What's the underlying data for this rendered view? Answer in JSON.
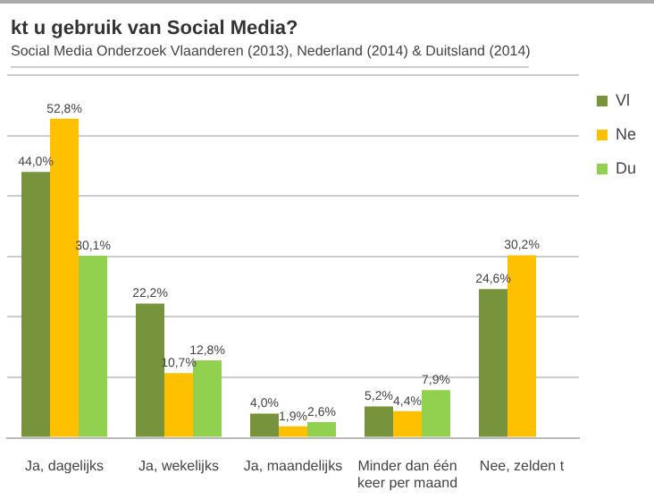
{
  "chart_data": {
    "type": "bar",
    "title": "kt u gebruik van Social Media?",
    "subtitle": "Social Media Onderzoek Vlaanderen (2013), Nederland (2014) & Duitsland (2014)",
    "categories": [
      "Ja, dagelijks",
      "Ja, wekelijks",
      "Ja, maandelijks",
      "Minder dan één keer per maand",
      "Nee, zelden t"
    ],
    "series": [
      {
        "name": "Vl",
        "color": "#77933c",
        "values": [
          44.0,
          22.2,
          4.0,
          5.2,
          24.6
        ],
        "value_labels": [
          "44,0%",
          "22,2%",
          "4,0%",
          "5,2%",
          "24,6%"
        ]
      },
      {
        "name": "Ne",
        "color": "#ffc000",
        "values": [
          52.8,
          10.7,
          1.9,
          4.4,
          30.2
        ],
        "value_labels": [
          "52,8%",
          "10,7%",
          "1,9%",
          "4,4%",
          "30,2%"
        ]
      },
      {
        "name": "Du",
        "color": "#92d050",
        "values": [
          30.1,
          12.8,
          2.6,
          7.9,
          null
        ],
        "value_labels": [
          "30,1%",
          "12,8%",
          "2,6%",
          "7,9%",
          null
        ]
      }
    ],
    "tick_labels": "x",
    "grid": "y",
    "legend": "top right"
  }
}
